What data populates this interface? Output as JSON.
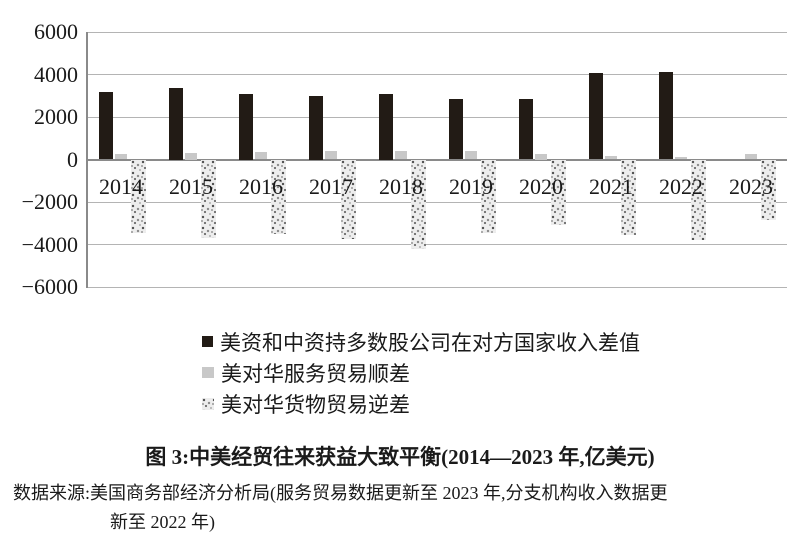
{
  "figure": {
    "caption": "图 3:中美经贸往来获益大致平衡(2014—2023 年,亿美元)",
    "source_line1": "数据来源:美国商务部经济分析局(服务贸易数据更新至 2023 年,分支机构收入数据更",
    "source_line2": "新至 2022 年)"
  },
  "chart_data": {
    "type": "bar",
    "unit": "亿美元",
    "categories": [
      "2014",
      "2015",
      "2016",
      "2017",
      "2018",
      "2019",
      "2020",
      "2021",
      "2022",
      "2023"
    ],
    "series": [
      {
        "name": "美资和中资持多数股公司在对方国家收入差值",
        "marker": "black-square",
        "color": "#221b15",
        "values": [
          3170,
          3350,
          3100,
          3000,
          3100,
          2830,
          2870,
          4060,
          4130,
          null
        ]
      },
      {
        "name": "美对华服务贸易顺差",
        "marker": "gray-square",
        "color": "#c8c8c8",
        "values": [
          260,
          300,
          360,
          380,
          390,
          380,
          250,
          180,
          130,
          270
        ]
      },
      {
        "name": "美对华货物贸易逆差",
        "marker": "speckled-square",
        "color": "speckled-pattern",
        "values": [
          -3450,
          -3700,
          -3500,
          -3750,
          -4200,
          -3450,
          -3100,
          -3550,
          -3800,
          -2850
        ]
      }
    ],
    "ylim": [
      -6000,
      6000
    ],
    "yticks": [
      6000,
      4000,
      2000,
      0,
      -2000,
      -4000,
      -6000
    ],
    "ytick_labels": [
      "6000",
      "4000",
      "2000",
      "0",
      "−2000",
      "−4000",
      "−6000"
    ],
    "grid": true,
    "legend_position": "below-left",
    "xlabel": "",
    "ylabel": ""
  },
  "colors": {
    "gridline": "#b4b4b4",
    "axis": "#8a8a8a",
    "bar_black": "#221b15",
    "bar_gray": "#c8c8c8",
    "speckle_base": "#ededed",
    "speckle_dot": "#5a5a5a",
    "text": "#1a1a1a",
    "background": "#ffffff"
  }
}
